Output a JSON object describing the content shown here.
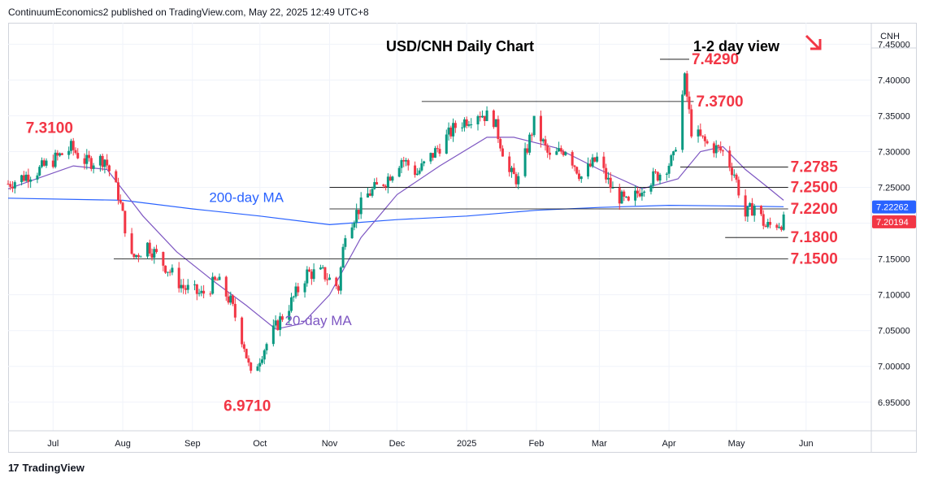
{
  "header": {
    "publisher_line": "ContinuumEconomics2 published on TradingView.com, May 22, 2025 12:49 UTC+8"
  },
  "footer": {
    "brand": "TradingView",
    "logo_text": "17"
  },
  "colors": {
    "up": "#089981",
    "down": "#f23645",
    "ma20": "#7e57c2",
    "ma200": "#2962ff",
    "level_line": "#f23645",
    "annotation": "#f23645",
    "ma_label": "#7e57c2",
    "ma200_label": "#2962ff",
    "grid": "#f0f3fa"
  },
  "chart_data": {
    "type": "candlestick",
    "title": "USD/CNH Daily Chart",
    "view_label": "1-2 day view",
    "view_icon": "down-right-arrow-icon",
    "symbol": "CNH",
    "ylim": [
      6.91,
      7.48
    ],
    "y_ticks": [
      "7.45000",
      "7.40000",
      "7.35000",
      "7.30000",
      "7.25000",
      "7.20000",
      "7.15000",
      "7.10000",
      "7.05000",
      "7.00000",
      "6.95000"
    ],
    "y_tick_values": [
      7.45,
      7.4,
      7.35,
      7.3,
      7.25,
      7.2,
      7.15,
      7.1,
      7.05,
      7.0,
      6.95
    ],
    "x_ticks": [
      "Jul",
      "Aug",
      "Sep",
      "Oct",
      "Nov",
      "Dec",
      "2025",
      "Feb",
      "Mar",
      "Apr",
      "May",
      "Jun"
    ],
    "x_tick_dates": [
      "2024-07-01",
      "2024-08-01",
      "2024-09-01",
      "2024-10-01",
      "2024-11-01",
      "2024-12-01",
      "2025-01-01",
      "2025-02-01",
      "2025-03-01",
      "2025-04-01",
      "2025-05-01",
      "2025-06-01"
    ],
    "date_range": [
      "2024-06-11",
      "2025-06-30"
    ],
    "last_date": "2025-05-22",
    "anchors": [
      [
        "2024-06-11",
        7.255
      ],
      [
        "2024-06-25",
        7.275
      ],
      [
        "2024-07-09",
        7.305
      ],
      [
        "2024-07-16",
        7.285
      ],
      [
        "2024-07-24",
        7.29
      ],
      [
        "2024-07-30",
        7.24
      ],
      [
        "2024-08-05",
        7.15
      ],
      [
        "2024-08-12",
        7.17
      ],
      [
        "2024-08-20",
        7.14
      ],
      [
        "2024-08-28",
        7.11
      ],
      [
        "2024-09-05",
        7.1
      ],
      [
        "2024-09-12",
        7.12
      ],
      [
        "2024-09-18",
        7.09
      ],
      [
        "2024-09-24",
        7.03
      ],
      [
        "2024-09-27",
        6.985
      ],
      [
        "2024-10-02",
        7.02
      ],
      [
        "2024-10-09",
        7.06
      ],
      [
        "2024-10-15",
        7.09
      ],
      [
        "2024-10-22",
        7.13
      ],
      [
        "2024-10-29",
        7.13
      ],
      [
        "2024-11-05",
        7.11
      ],
      [
        "2024-11-08",
        7.19
      ],
      [
        "2024-11-18",
        7.24
      ],
      [
        "2024-11-26",
        7.26
      ],
      [
        "2024-12-03",
        7.29
      ],
      [
        "2024-12-10",
        7.27
      ],
      [
        "2024-12-18",
        7.3
      ],
      [
        "2024-12-27",
        7.335
      ],
      [
        "2025-01-06",
        7.355
      ],
      [
        "2025-01-13",
        7.345
      ],
      [
        "2025-01-20",
        7.27
      ],
      [
        "2025-01-24",
        7.26
      ],
      [
        "2025-01-31",
        7.34
      ],
      [
        "2025-02-07",
        7.29
      ],
      [
        "2025-02-14",
        7.305
      ],
      [
        "2025-02-21",
        7.265
      ],
      [
        "2025-02-28",
        7.29
      ],
      [
        "2025-03-07",
        7.245
      ],
      [
        "2025-03-14",
        7.225
      ],
      [
        "2025-03-21",
        7.255
      ],
      [
        "2025-03-28",
        7.27
      ],
      [
        "2025-04-03",
        7.29
      ],
      [
        "2025-04-08",
        7.4
      ],
      [
        "2025-04-11",
        7.33
      ],
      [
        "2025-04-18",
        7.31
      ],
      [
        "2025-04-25",
        7.3
      ],
      [
        "2025-04-30",
        7.27
      ],
      [
        "2025-05-05",
        7.21
      ],
      [
        "2025-05-09",
        7.225
      ],
      [
        "2025-05-14",
        7.195
      ],
      [
        "2025-05-22",
        7.202
      ]
    ],
    "ma20": [
      [
        "2024-06-11",
        7.248
      ],
      [
        "2024-07-10",
        7.28
      ],
      [
        "2024-07-25",
        7.275
      ],
      [
        "2024-08-10",
        7.21
      ],
      [
        "2024-08-25",
        7.16
      ],
      [
        "2024-09-10",
        7.12
      ],
      [
        "2024-09-25",
        7.085
      ],
      [
        "2024-10-08",
        7.052
      ],
      [
        "2024-10-20",
        7.06
      ],
      [
        "2024-11-01",
        7.1
      ],
      [
        "2024-11-15",
        7.18
      ],
      [
        "2024-12-01",
        7.24
      ],
      [
        "2024-12-20",
        7.28
      ],
      [
        "2025-01-10",
        7.32
      ],
      [
        "2025-01-22",
        7.32
      ],
      [
        "2025-02-10",
        7.305
      ],
      [
        "2025-03-01",
        7.275
      ],
      [
        "2025-03-20",
        7.248
      ],
      [
        "2025-04-05",
        7.262
      ],
      [
        "2025-04-15",
        7.3
      ],
      [
        "2025-04-25",
        7.307
      ],
      [
        "2025-05-05",
        7.275
      ],
      [
        "2025-05-15",
        7.25
      ],
      [
        "2025-05-22",
        7.232
      ]
    ],
    "ma200": [
      [
        "2024-06-11",
        7.235
      ],
      [
        "2024-08-01",
        7.232
      ],
      [
        "2024-09-01",
        7.22
      ],
      [
        "2024-10-01",
        7.21
      ],
      [
        "2024-11-01",
        7.198
      ],
      [
        "2024-12-01",
        7.205
      ],
      [
        "2025-01-01",
        7.21
      ],
      [
        "2025-02-01",
        7.218
      ],
      [
        "2025-03-01",
        7.222
      ],
      [
        "2025-04-01",
        7.225
      ],
      [
        "2025-05-01",
        7.224
      ],
      [
        "2025-05-22",
        7.223
      ]
    ],
    "levels": [
      {
        "label": "7.4290",
        "value": 7.429,
        "from": "2025-03-28",
        "to": "2025-04-10"
      },
      {
        "label": "7.3700",
        "value": 7.37,
        "from": "2024-12-12",
        "to": "2025-04-12"
      },
      {
        "label": "7.2785",
        "value": 7.2785,
        "from": "2025-04-06",
        "to": "2025-05-24"
      },
      {
        "label": "7.2500",
        "value": 7.25,
        "from": "2024-11-01",
        "to": "2025-05-24"
      },
      {
        "label": "7.2200",
        "value": 7.22,
        "from": "2024-11-01",
        "to": "2025-05-24"
      },
      {
        "label": "7.1800",
        "value": 7.18,
        "from": "2025-04-26",
        "to": "2025-05-24"
      },
      {
        "label": "7.1500",
        "value": 7.15,
        "from": "2024-07-28",
        "to": "2025-05-24"
      }
    ],
    "annotations": [
      {
        "text": "7.3100",
        "value": 7.31,
        "date": "2024-07-03"
      },
      {
        "text": "6.9710",
        "value": 6.971,
        "date": "2024-09-29"
      }
    ],
    "ma_labels": [
      {
        "text": "200-day MA",
        "date": "2024-09-25",
        "value": 7.225,
        "series": "ma200"
      },
      {
        "text": "20-day MA",
        "date": "2024-10-27",
        "value": 7.053,
        "series": "ma20"
      }
    ],
    "price_badges": [
      {
        "text": "7.22262",
        "value": 7.22262,
        "color": "#2962ff"
      },
      {
        "text": "7.20194",
        "value": 7.20194,
        "color": "#f23645"
      }
    ]
  }
}
